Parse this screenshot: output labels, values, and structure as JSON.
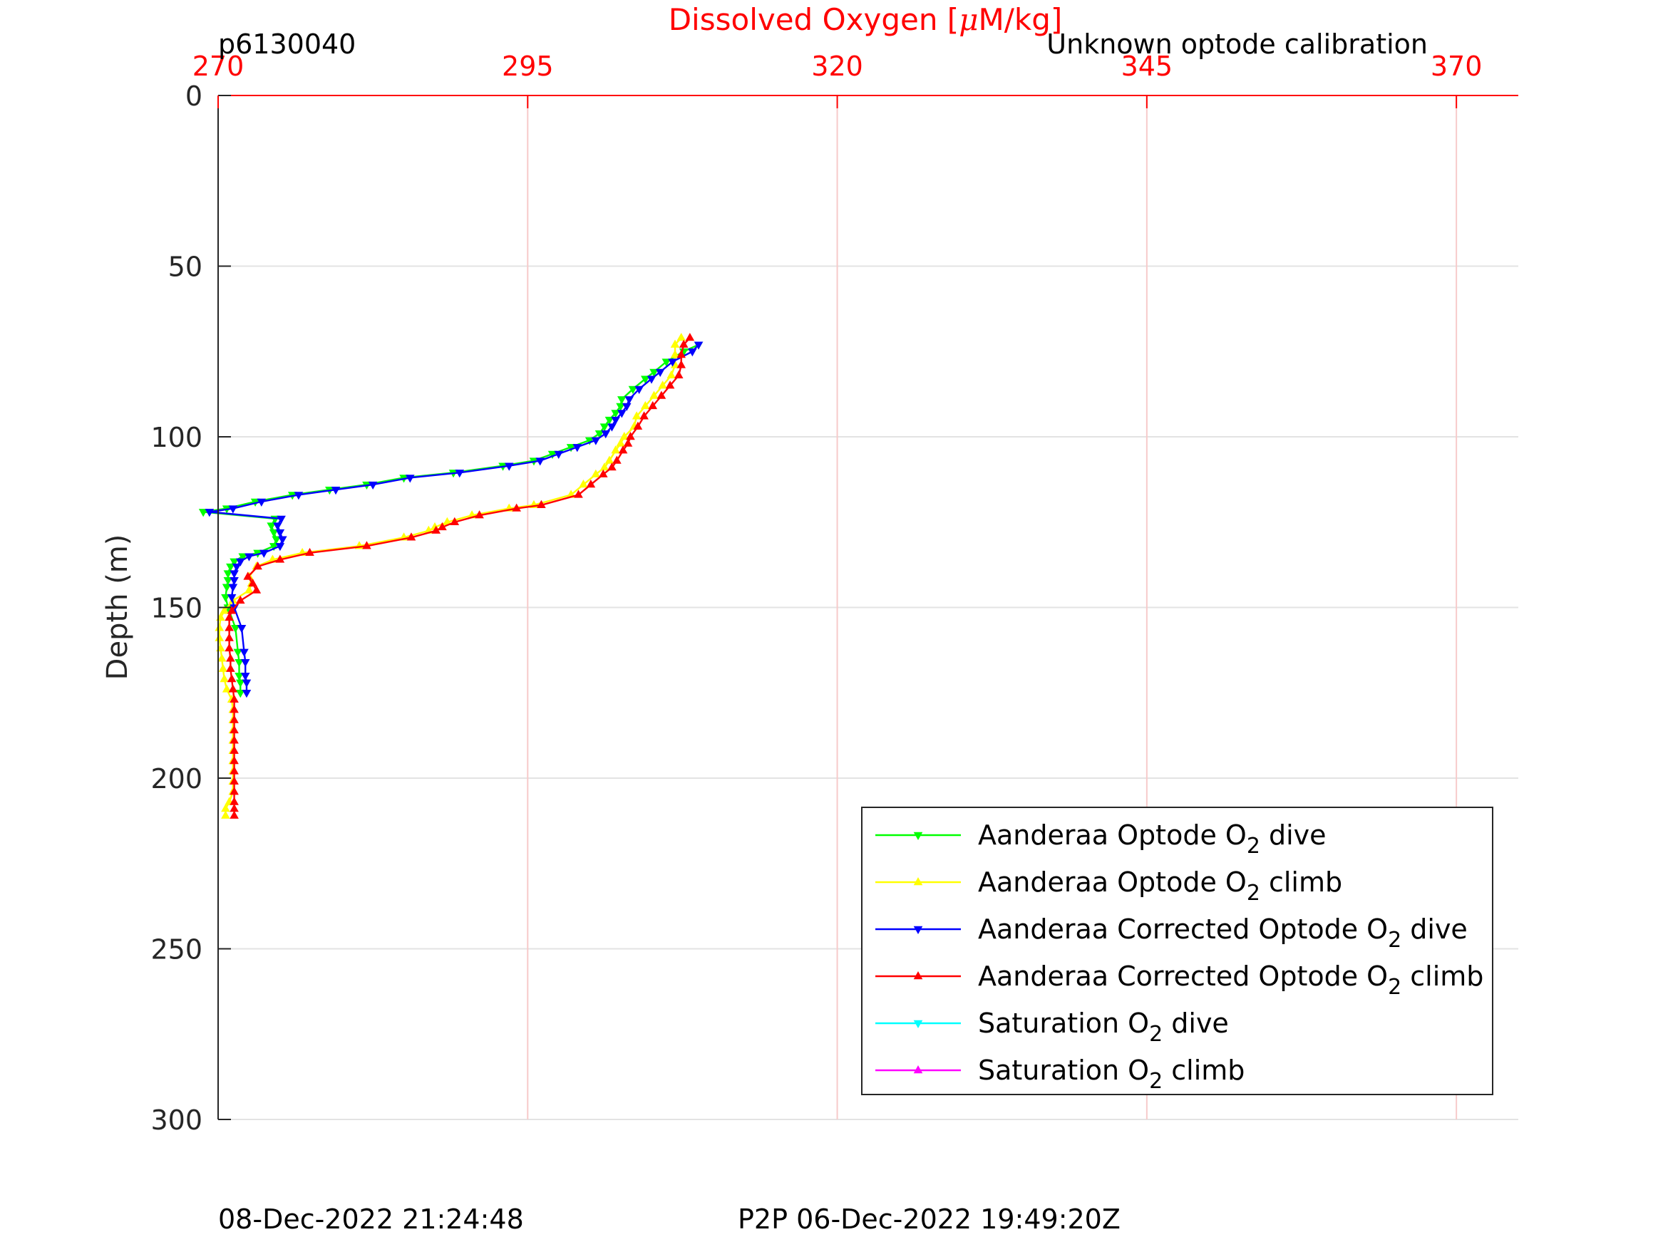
{
  "header": {
    "profile_id": "p6130040",
    "calibration_note": "Unknown optode calibration"
  },
  "footer": {
    "plot_time": "08-Dec-2022 21:24:48",
    "p2p_time": "P2P 06-Dec-2022 19:49:20Z"
  },
  "chart_data": {
    "type": "line",
    "title": "",
    "xlabel_prefix": "Dissolved Oxygen [",
    "xlabel_mu": "μ",
    "xlabel_suffix": "M/kg]",
    "ylabel": "Depth (m)",
    "x_axis_position": "top",
    "y_axis_reversed": true,
    "xlim": [
      270,
      375
    ],
    "ylim": [
      0,
      300
    ],
    "xticks": [
      270,
      295,
      320,
      345,
      370
    ],
    "yticks": [
      0,
      50,
      100,
      150,
      200,
      250,
      300
    ],
    "grid": true,
    "legend_position": "bottom-right",
    "colors": {
      "axis": "#262626",
      "x_axis": "#ff0000",
      "xgrid": "#f7caca",
      "ygrid": "#e3e3e3"
    },
    "series": [
      {
        "name_prefix": "Aanderaa Optode O",
        "name_sub": "2",
        "name_suffix": " dive",
        "color": "#00ff00",
        "marker": "triangle-down",
        "points": [
          [
            308.8,
            73
          ],
          [
            307.6,
            75
          ],
          [
            306.2,
            78
          ],
          [
            305.2,
            81
          ],
          [
            304.5,
            83
          ],
          [
            303.5,
            86
          ],
          [
            302.6,
            89
          ],
          [
            302.5,
            91
          ],
          [
            302.1,
            93
          ],
          [
            301.6,
            95
          ],
          [
            301.2,
            97
          ],
          [
            300.8,
            99
          ],
          [
            300,
            101
          ],
          [
            298.5,
            103
          ],
          [
            297,
            105
          ],
          [
            295.5,
            107
          ],
          [
            293,
            108.5
          ],
          [
            289,
            110.5
          ],
          [
            285,
            112
          ],
          [
            282,
            114
          ],
          [
            279,
            115.5
          ],
          [
            276,
            117
          ],
          [
            273,
            119
          ],
          [
            270.7,
            121
          ],
          [
            268.8,
            122
          ],
          [
            274.6,
            124
          ],
          [
            274.3,
            126
          ],
          [
            274.5,
            128
          ],
          [
            274.7,
            130
          ],
          [
            274.5,
            132
          ],
          [
            273.2,
            134
          ],
          [
            272,
            135
          ],
          [
            271.3,
            136.5
          ],
          [
            271,
            138
          ],
          [
            270.8,
            140
          ],
          [
            270.8,
            142
          ],
          [
            270.7,
            144
          ],
          [
            270.6,
            147
          ],
          [
            270.8,
            150
          ],
          [
            271.4,
            156
          ],
          [
            271.6,
            163
          ],
          [
            271.7,
            166
          ],
          [
            271.7,
            170
          ],
          [
            271.8,
            172
          ],
          [
            271.8,
            175
          ]
        ]
      },
      {
        "name_prefix": "Aanderaa Optode O",
        "name_sub": "2",
        "name_suffix": " climb",
        "color": "#ffff00",
        "marker": "triangle-up",
        "points": [
          [
            270.6,
            211
          ],
          [
            270.6,
            209
          ],
          [
            270.9,
            207
          ],
          [
            271.2,
            204
          ],
          [
            271.2,
            201
          ],
          [
            271.2,
            198
          ],
          [
            271.2,
            195
          ],
          [
            271.2,
            192
          ],
          [
            271.2,
            189
          ],
          [
            271.2,
            186
          ],
          [
            271.2,
            183
          ],
          [
            271.2,
            180
          ],
          [
            271.1,
            177
          ],
          [
            270.7,
            174
          ],
          [
            270.5,
            171
          ],
          [
            270.4,
            168
          ],
          [
            270.3,
            165
          ],
          [
            270.2,
            162
          ],
          [
            270.1,
            159
          ],
          [
            270.1,
            156
          ],
          [
            270.2,
            153
          ],
          [
            270.5,
            151
          ],
          [
            271.2,
            148
          ],
          [
            272.5,
            145
          ],
          [
            272.7,
            143
          ],
          [
            272.5,
            141
          ],
          [
            273.1,
            138
          ],
          [
            274.4,
            136
          ],
          [
            276.8,
            134
          ],
          [
            281.4,
            132
          ],
          [
            285,
            129.5
          ],
          [
            287,
            127.5
          ],
          [
            287.5,
            126.5
          ],
          [
            288.5,
            125
          ],
          [
            290.5,
            123
          ],
          [
            293.5,
            121
          ],
          [
            295.5,
            120
          ],
          [
            298.5,
            117
          ],
          [
            299.5,
            114
          ],
          [
            300.5,
            111
          ],
          [
            301.2,
            109
          ],
          [
            301.6,
            107
          ],
          [
            302.1,
            104
          ],
          [
            302.5,
            102
          ],
          [
            302.8,
            100
          ],
          [
            303.6,
            97
          ],
          [
            303.8,
            94
          ],
          [
            304.5,
            91
          ],
          [
            305.2,
            88
          ],
          [
            305.9,
            85
          ],
          [
            306.6,
            82
          ],
          [
            306.9,
            79
          ],
          [
            306.9,
            76
          ],
          [
            306.9,
            73
          ],
          [
            307.4,
            71
          ]
        ]
      },
      {
        "name_prefix": "Aanderaa Corrected Optode O",
        "name_sub": "2",
        "name_suffix": " dive",
        "color": "#0000ff",
        "marker": "triangle-down",
        "points": [
          [
            308.8,
            73
          ],
          [
            308.3,
            75
          ],
          [
            306.7,
            78
          ],
          [
            305.7,
            81
          ],
          [
            305,
            83
          ],
          [
            304,
            86
          ],
          [
            303.2,
            89
          ],
          [
            303,
            91
          ],
          [
            302.6,
            93
          ],
          [
            302.1,
            95
          ],
          [
            301.8,
            97
          ],
          [
            301.3,
            99
          ],
          [
            300.5,
            101
          ],
          [
            299,
            103
          ],
          [
            297.5,
            105
          ],
          [
            296,
            107
          ],
          [
            293.5,
            108.5
          ],
          [
            289.5,
            110.5
          ],
          [
            285.5,
            112
          ],
          [
            282.5,
            114
          ],
          [
            279.5,
            115.5
          ],
          [
            276.5,
            117
          ],
          [
            273.5,
            119
          ],
          [
            271.2,
            121
          ],
          [
            269.3,
            122
          ],
          [
            275.1,
            124
          ],
          [
            274.8,
            126
          ],
          [
            275,
            128
          ],
          [
            275.2,
            130
          ],
          [
            275,
            132
          ],
          [
            273.7,
            134
          ],
          [
            272.5,
            135
          ],
          [
            271.8,
            136.5
          ],
          [
            271.5,
            138
          ],
          [
            271.3,
            140
          ],
          [
            271.3,
            142
          ],
          [
            271.2,
            144
          ],
          [
            271.1,
            147
          ],
          [
            271.3,
            150
          ],
          [
            271.9,
            156
          ],
          [
            272.1,
            163
          ],
          [
            272.2,
            166
          ],
          [
            272.2,
            170
          ],
          [
            272.3,
            172
          ],
          [
            272.3,
            175
          ]
        ]
      },
      {
        "name_prefix": "Aanderaa Corrected Optode O",
        "name_sub": "2",
        "name_suffix": " climb",
        "color": "#ff0000",
        "marker": "triangle-up",
        "points": [
          [
            271.3,
            211
          ],
          [
            271.3,
            209
          ],
          [
            271.3,
            207
          ],
          [
            271.3,
            204
          ],
          [
            271.3,
            201
          ],
          [
            271.3,
            198
          ],
          [
            271.3,
            195
          ],
          [
            271.3,
            192
          ],
          [
            271.3,
            189
          ],
          [
            271.3,
            186
          ],
          [
            271.3,
            183
          ],
          [
            271.3,
            180
          ],
          [
            271.3,
            177
          ],
          [
            271.2,
            174
          ],
          [
            271.1,
            171
          ],
          [
            271,
            168
          ],
          [
            271,
            165
          ],
          [
            270.9,
            162
          ],
          [
            270.9,
            159
          ],
          [
            270.9,
            156
          ],
          [
            270.9,
            153
          ],
          [
            271.1,
            151
          ],
          [
            271.8,
            148
          ],
          [
            273.1,
            145
          ],
          [
            272.8,
            143
          ],
          [
            272.4,
            141
          ],
          [
            273.2,
            138
          ],
          [
            275,
            136
          ],
          [
            277.4,
            134
          ],
          [
            282,
            132
          ],
          [
            285.6,
            129.5
          ],
          [
            287.6,
            127.5
          ],
          [
            288.1,
            126.5
          ],
          [
            289.1,
            125
          ],
          [
            291.1,
            123
          ],
          [
            294.1,
            121
          ],
          [
            296.1,
            120
          ],
          [
            299.1,
            117
          ],
          [
            300.1,
            114
          ],
          [
            301.1,
            111
          ],
          [
            301.8,
            109
          ],
          [
            302.2,
            107
          ],
          [
            302.7,
            104
          ],
          [
            303.1,
            102
          ],
          [
            303.3,
            100
          ],
          [
            303.9,
            97
          ],
          [
            304.4,
            94
          ],
          [
            305.1,
            91
          ],
          [
            305.8,
            88
          ],
          [
            306.5,
            85
          ],
          [
            307.2,
            82
          ],
          [
            307.4,
            79
          ],
          [
            307.4,
            76
          ],
          [
            307.6,
            73
          ],
          [
            308.1,
            71
          ]
        ]
      },
      {
        "name_prefix": "Saturation O",
        "name_sub": "2",
        "name_suffix": " dive",
        "color": "#00ffff",
        "marker": "triangle-down",
        "points": []
      },
      {
        "name_prefix": "Saturation O",
        "name_sub": "2",
        "name_suffix": " climb",
        "color": "#ff00ff",
        "marker": "triangle-up",
        "points": []
      }
    ]
  }
}
